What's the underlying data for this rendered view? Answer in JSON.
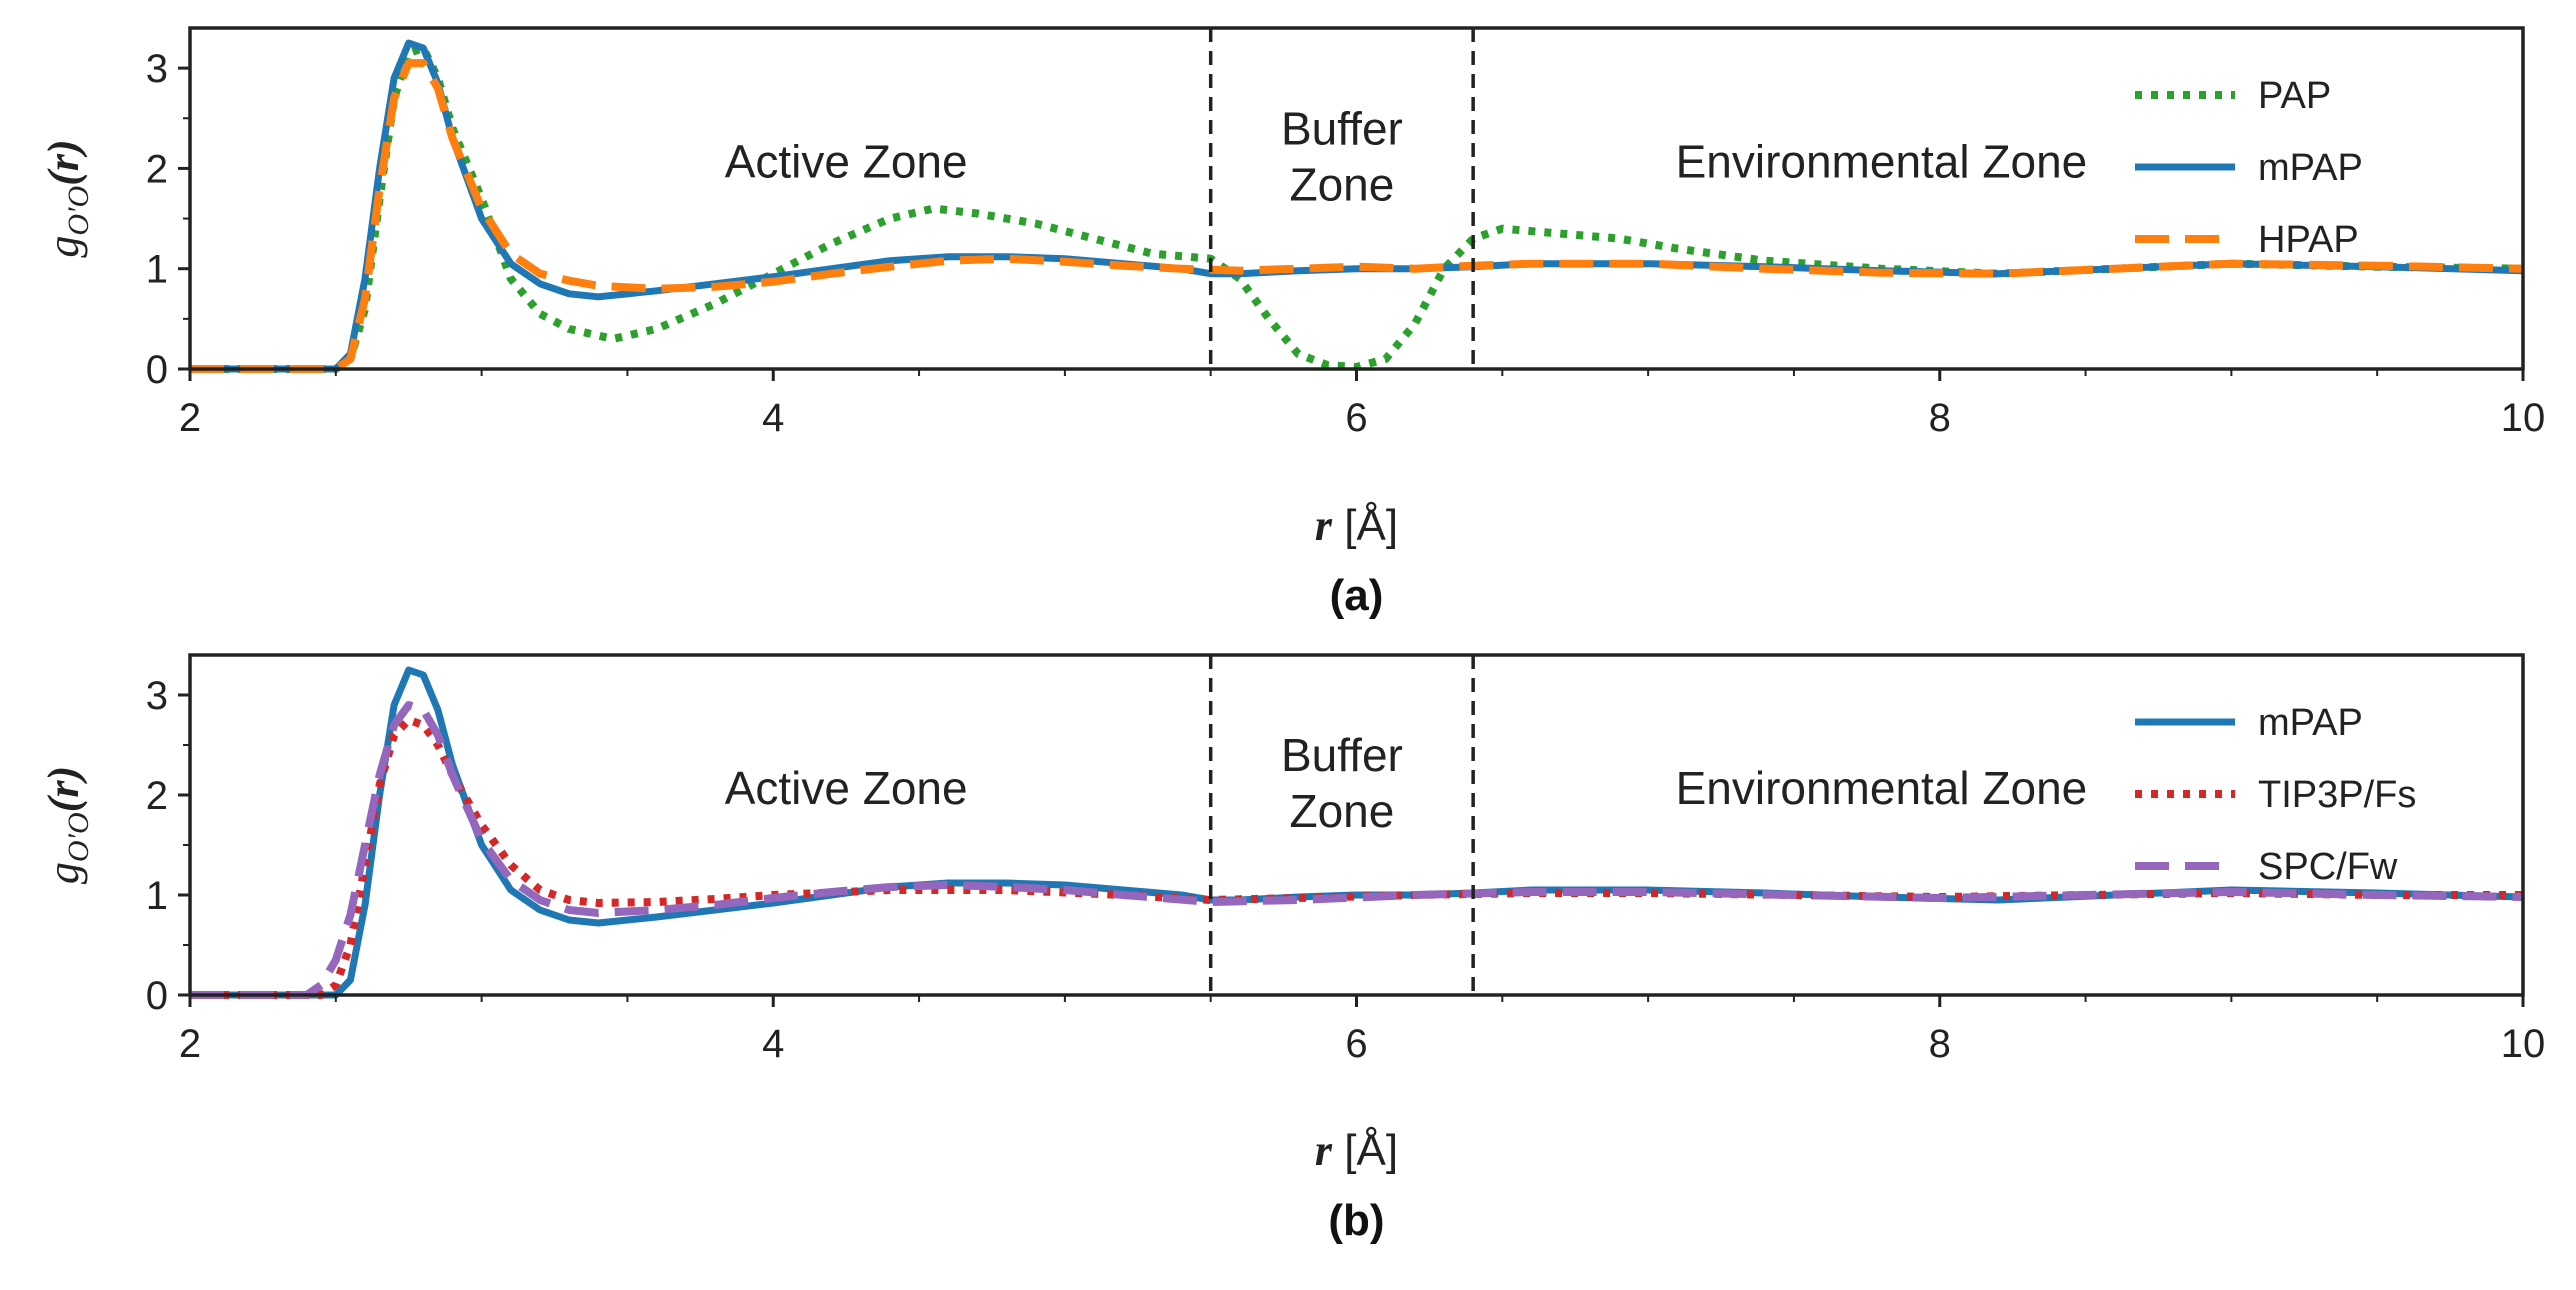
{
  "chart_data": [
    {
      "type": "line",
      "panel_label": "(a)",
      "xlabel_var": "r",
      "xlabel_unit": " [Å]",
      "ylabel_base": "g",
      "ylabel_sub": "O′O",
      "ylabel_arg": "(r)",
      "xlim": [
        2,
        10
      ],
      "ylim": [
        0,
        3.4
      ],
      "xticks": [
        2,
        4,
        6,
        8,
        10
      ],
      "yticks": [
        0,
        1,
        2,
        3
      ],
      "vlines": [
        5.5,
        6.4
      ],
      "zones": [
        {
          "lines": [
            "Active Zone"
          ],
          "x": 4.25,
          "y": 2.07
        },
        {
          "lines": [
            "Buffer",
            "Zone"
          ],
          "x": 5.95,
          "y": 2.4
        },
        {
          "lines": [
            "Environmental Zone"
          ],
          "x": 7.8,
          "y": 2.07
        }
      ],
      "legend_position": "top-right",
      "series": [
        {
          "name": "PAP",
          "color": "#2ca02c",
          "dash": "dotted",
          "points": [
            [
              2.0,
              0
            ],
            [
              2.5,
              0
            ],
            [
              2.55,
              0.1
            ],
            [
              2.6,
              0.6
            ],
            [
              2.65,
              1.7
            ],
            [
              2.7,
              2.7
            ],
            [
              2.75,
              3.15
            ],
            [
              2.8,
              3.2
            ],
            [
              2.85,
              2.9
            ],
            [
              2.9,
              2.4
            ],
            [
              3.0,
              1.7
            ],
            [
              3.1,
              0.9
            ],
            [
              3.2,
              0.55
            ],
            [
              3.3,
              0.4
            ],
            [
              3.45,
              0.3
            ],
            [
              3.6,
              0.4
            ],
            [
              3.8,
              0.65
            ],
            [
              4.0,
              0.95
            ],
            [
              4.2,
              1.25
            ],
            [
              4.4,
              1.5
            ],
            [
              4.55,
              1.6
            ],
            [
              4.7,
              1.55
            ],
            [
              4.9,
              1.45
            ],
            [
              5.1,
              1.3
            ],
            [
              5.3,
              1.15
            ],
            [
              5.5,
              1.1
            ],
            [
              5.6,
              0.9
            ],
            [
              5.7,
              0.5
            ],
            [
              5.8,
              0.15
            ],
            [
              5.9,
              0.04
            ],
            [
              6.0,
              0.02
            ],
            [
              6.1,
              0.1
            ],
            [
              6.2,
              0.45
            ],
            [
              6.3,
              1.0
            ],
            [
              6.4,
              1.3
            ],
            [
              6.5,
              1.4
            ],
            [
              6.7,
              1.35
            ],
            [
              6.9,
              1.3
            ],
            [
              7.1,
              1.2
            ],
            [
              7.4,
              1.08
            ],
            [
              7.8,
              1.0
            ],
            [
              8.2,
              0.95
            ],
            [
              8.6,
              1.0
            ],
            [
              9.0,
              1.05
            ],
            [
              9.5,
              1.02
            ],
            [
              10.0,
              1.0
            ]
          ]
        },
        {
          "name": "mPAP",
          "color": "#1f77b4",
          "dash": "solid",
          "points": [
            [
              2.0,
              0
            ],
            [
              2.5,
              0
            ],
            [
              2.55,
              0.15
            ],
            [
              2.6,
              0.9
            ],
            [
              2.65,
              2.0
            ],
            [
              2.7,
              2.9
            ],
            [
              2.75,
              3.25
            ],
            [
              2.8,
              3.2
            ],
            [
              2.85,
              2.85
            ],
            [
              2.9,
              2.3
            ],
            [
              3.0,
              1.5
            ],
            [
              3.1,
              1.05
            ],
            [
              3.2,
              0.85
            ],
            [
              3.3,
              0.75
            ],
            [
              3.4,
              0.72
            ],
            [
              3.6,
              0.78
            ],
            [
              3.8,
              0.85
            ],
            [
              4.0,
              0.92
            ],
            [
              4.2,
              1.0
            ],
            [
              4.4,
              1.08
            ],
            [
              4.6,
              1.12
            ],
            [
              4.8,
              1.12
            ],
            [
              5.0,
              1.1
            ],
            [
              5.2,
              1.05
            ],
            [
              5.4,
              1.0
            ],
            [
              5.5,
              0.95
            ],
            [
              5.6,
              0.95
            ],
            [
              5.8,
              0.98
            ],
            [
              6.0,
              1.0
            ],
            [
              6.2,
              1.0
            ],
            [
              6.4,
              1.02
            ],
            [
              6.6,
              1.05
            ],
            [
              7.0,
              1.05
            ],
            [
              7.4,
              1.02
            ],
            [
              7.8,
              0.98
            ],
            [
              8.2,
              0.95
            ],
            [
              8.6,
              1.0
            ],
            [
              9.0,
              1.05
            ],
            [
              9.5,
              1.02
            ],
            [
              10.0,
              0.98
            ]
          ]
        },
        {
          "name": "HPAP",
          "color": "#ff7f0e",
          "dash": "dashed",
          "points": [
            [
              2.0,
              0
            ],
            [
              2.5,
              0
            ],
            [
              2.55,
              0.1
            ],
            [
              2.6,
              0.7
            ],
            [
              2.65,
              1.8
            ],
            [
              2.7,
              2.7
            ],
            [
              2.75,
              3.05
            ],
            [
              2.8,
              3.05
            ],
            [
              2.85,
              2.8
            ],
            [
              2.9,
              2.3
            ],
            [
              3.0,
              1.6
            ],
            [
              3.1,
              1.15
            ],
            [
              3.2,
              0.95
            ],
            [
              3.3,
              0.88
            ],
            [
              3.4,
              0.83
            ],
            [
              3.6,
              0.8
            ],
            [
              3.8,
              0.82
            ],
            [
              4.0,
              0.87
            ],
            [
              4.2,
              0.95
            ],
            [
              4.4,
              1.02
            ],
            [
              4.6,
              1.08
            ],
            [
              4.8,
              1.1
            ],
            [
              5.0,
              1.07
            ],
            [
              5.2,
              1.03
            ],
            [
              5.4,
              1.0
            ],
            [
              5.6,
              0.98
            ],
            [
              5.8,
              1.0
            ],
            [
              6.0,
              1.02
            ],
            [
              6.2,
              1.0
            ],
            [
              6.4,
              1.03
            ],
            [
              6.6,
              1.05
            ],
            [
              7.0,
              1.05
            ],
            [
              7.4,
              1.0
            ],
            [
              7.8,
              0.96
            ],
            [
              8.2,
              0.95
            ],
            [
              8.6,
              1.0
            ],
            [
              9.0,
              1.05
            ],
            [
              9.5,
              1.03
            ],
            [
              10.0,
              1.0
            ]
          ]
        }
      ]
    },
    {
      "type": "line",
      "panel_label": "(b)",
      "xlabel_var": "r",
      "xlabel_unit": " [Å]",
      "ylabel_base": "g",
      "ylabel_sub": "O′O",
      "ylabel_arg": "(r)",
      "xlim": [
        2,
        10
      ],
      "ylim": [
        0,
        3.4
      ],
      "xticks": [
        2,
        4,
        6,
        8,
        10
      ],
      "yticks": [
        0,
        1,
        2,
        3
      ],
      "vlines": [
        5.5,
        6.4
      ],
      "zones": [
        {
          "lines": [
            "Active Zone"
          ],
          "x": 4.25,
          "y": 2.07
        },
        {
          "lines": [
            "Buffer",
            "Zone"
          ],
          "x": 5.95,
          "y": 2.4
        },
        {
          "lines": [
            "Environmental Zone"
          ],
          "x": 7.8,
          "y": 2.07
        }
      ],
      "legend_position": "top-right",
      "series": [
        {
          "name": "mPAP",
          "color": "#1f77b4",
          "dash": "solid",
          "points": [
            [
              2.0,
              0
            ],
            [
              2.5,
              0
            ],
            [
              2.55,
              0.15
            ],
            [
              2.6,
              0.9
            ],
            [
              2.65,
              2.0
            ],
            [
              2.7,
              2.9
            ],
            [
              2.75,
              3.25
            ],
            [
              2.8,
              3.2
            ],
            [
              2.85,
              2.85
            ],
            [
              2.9,
              2.3
            ],
            [
              3.0,
              1.5
            ],
            [
              3.1,
              1.05
            ],
            [
              3.2,
              0.85
            ],
            [
              3.3,
              0.75
            ],
            [
              3.4,
              0.72
            ],
            [
              3.6,
              0.78
            ],
            [
              3.8,
              0.85
            ],
            [
              4.0,
              0.92
            ],
            [
              4.2,
              1.0
            ],
            [
              4.4,
              1.08
            ],
            [
              4.6,
              1.12
            ],
            [
              4.8,
              1.12
            ],
            [
              5.0,
              1.1
            ],
            [
              5.2,
              1.05
            ],
            [
              5.4,
              1.0
            ],
            [
              5.5,
              0.95
            ],
            [
              5.6,
              0.95
            ],
            [
              5.8,
              0.98
            ],
            [
              6.0,
              1.0
            ],
            [
              6.2,
              1.0
            ],
            [
              6.4,
              1.02
            ],
            [
              6.6,
              1.05
            ],
            [
              7.0,
              1.05
            ],
            [
              7.4,
              1.02
            ],
            [
              7.8,
              0.98
            ],
            [
              8.2,
              0.95
            ],
            [
              8.6,
              1.0
            ],
            [
              9.0,
              1.05
            ],
            [
              9.5,
              1.02
            ],
            [
              10.0,
              0.98
            ]
          ]
        },
        {
          "name": "TIP3P/Fs",
          "color": "#d62728",
          "dash": "dotted",
          "points": [
            [
              2.0,
              0
            ],
            [
              2.45,
              0
            ],
            [
              2.5,
              0.1
            ],
            [
              2.55,
              0.5
            ],
            [
              2.6,
              1.3
            ],
            [
              2.65,
              2.1
            ],
            [
              2.7,
              2.6
            ],
            [
              2.75,
              2.75
            ],
            [
              2.8,
              2.7
            ],
            [
              2.85,
              2.5
            ],
            [
              2.9,
              2.2
            ],
            [
              3.0,
              1.7
            ],
            [
              3.1,
              1.3
            ],
            [
              3.2,
              1.05
            ],
            [
              3.3,
              0.95
            ],
            [
              3.4,
              0.92
            ],
            [
              3.6,
              0.93
            ],
            [
              3.8,
              0.96
            ],
            [
              4.0,
              1.0
            ],
            [
              4.4,
              1.05
            ],
            [
              4.8,
              1.05
            ],
            [
              5.2,
              1.0
            ],
            [
              5.5,
              0.95
            ],
            [
              5.8,
              0.97
            ],
            [
              6.2,
              1.0
            ],
            [
              6.6,
              1.02
            ],
            [
              7.0,
              1.02
            ],
            [
              7.5,
              1.0
            ],
            [
              8.0,
              0.98
            ],
            [
              8.5,
              1.0
            ],
            [
              9.0,
              1.02
            ],
            [
              9.5,
              1.0
            ],
            [
              10.0,
              1.0
            ]
          ]
        },
        {
          "name": "SPC/Fw",
          "color": "#9467bd",
          "dash": "dashed",
          "points": [
            [
              2.0,
              0
            ],
            [
              2.4,
              0
            ],
            [
              2.45,
              0.1
            ],
            [
              2.5,
              0.35
            ],
            [
              2.55,
              0.8
            ],
            [
              2.6,
              1.5
            ],
            [
              2.65,
              2.2
            ],
            [
              2.7,
              2.7
            ],
            [
              2.75,
              2.9
            ],
            [
              2.8,
              2.85
            ],
            [
              2.85,
              2.6
            ],
            [
              2.9,
              2.2
            ],
            [
              3.0,
              1.55
            ],
            [
              3.1,
              1.15
            ],
            [
              3.2,
              0.95
            ],
            [
              3.3,
              0.85
            ],
            [
              3.4,
              0.82
            ],
            [
              3.6,
              0.85
            ],
            [
              3.8,
              0.9
            ],
            [
              4.0,
              0.97
            ],
            [
              4.2,
              1.03
            ],
            [
              4.4,
              1.08
            ],
            [
              4.6,
              1.1
            ],
            [
              4.8,
              1.08
            ],
            [
              5.0,
              1.05
            ],
            [
              5.2,
              1.0
            ],
            [
              5.5,
              0.93
            ],
            [
              5.8,
              0.95
            ],
            [
              6.2,
              1.0
            ],
            [
              6.6,
              1.03
            ],
            [
              7.0,
              1.03
            ],
            [
              7.5,
              1.0
            ],
            [
              8.0,
              0.97
            ],
            [
              8.5,
              1.0
            ],
            [
              9.0,
              1.03
            ],
            [
              9.5,
              1.0
            ],
            [
              10.0,
              0.98
            ]
          ]
        }
      ]
    }
  ]
}
